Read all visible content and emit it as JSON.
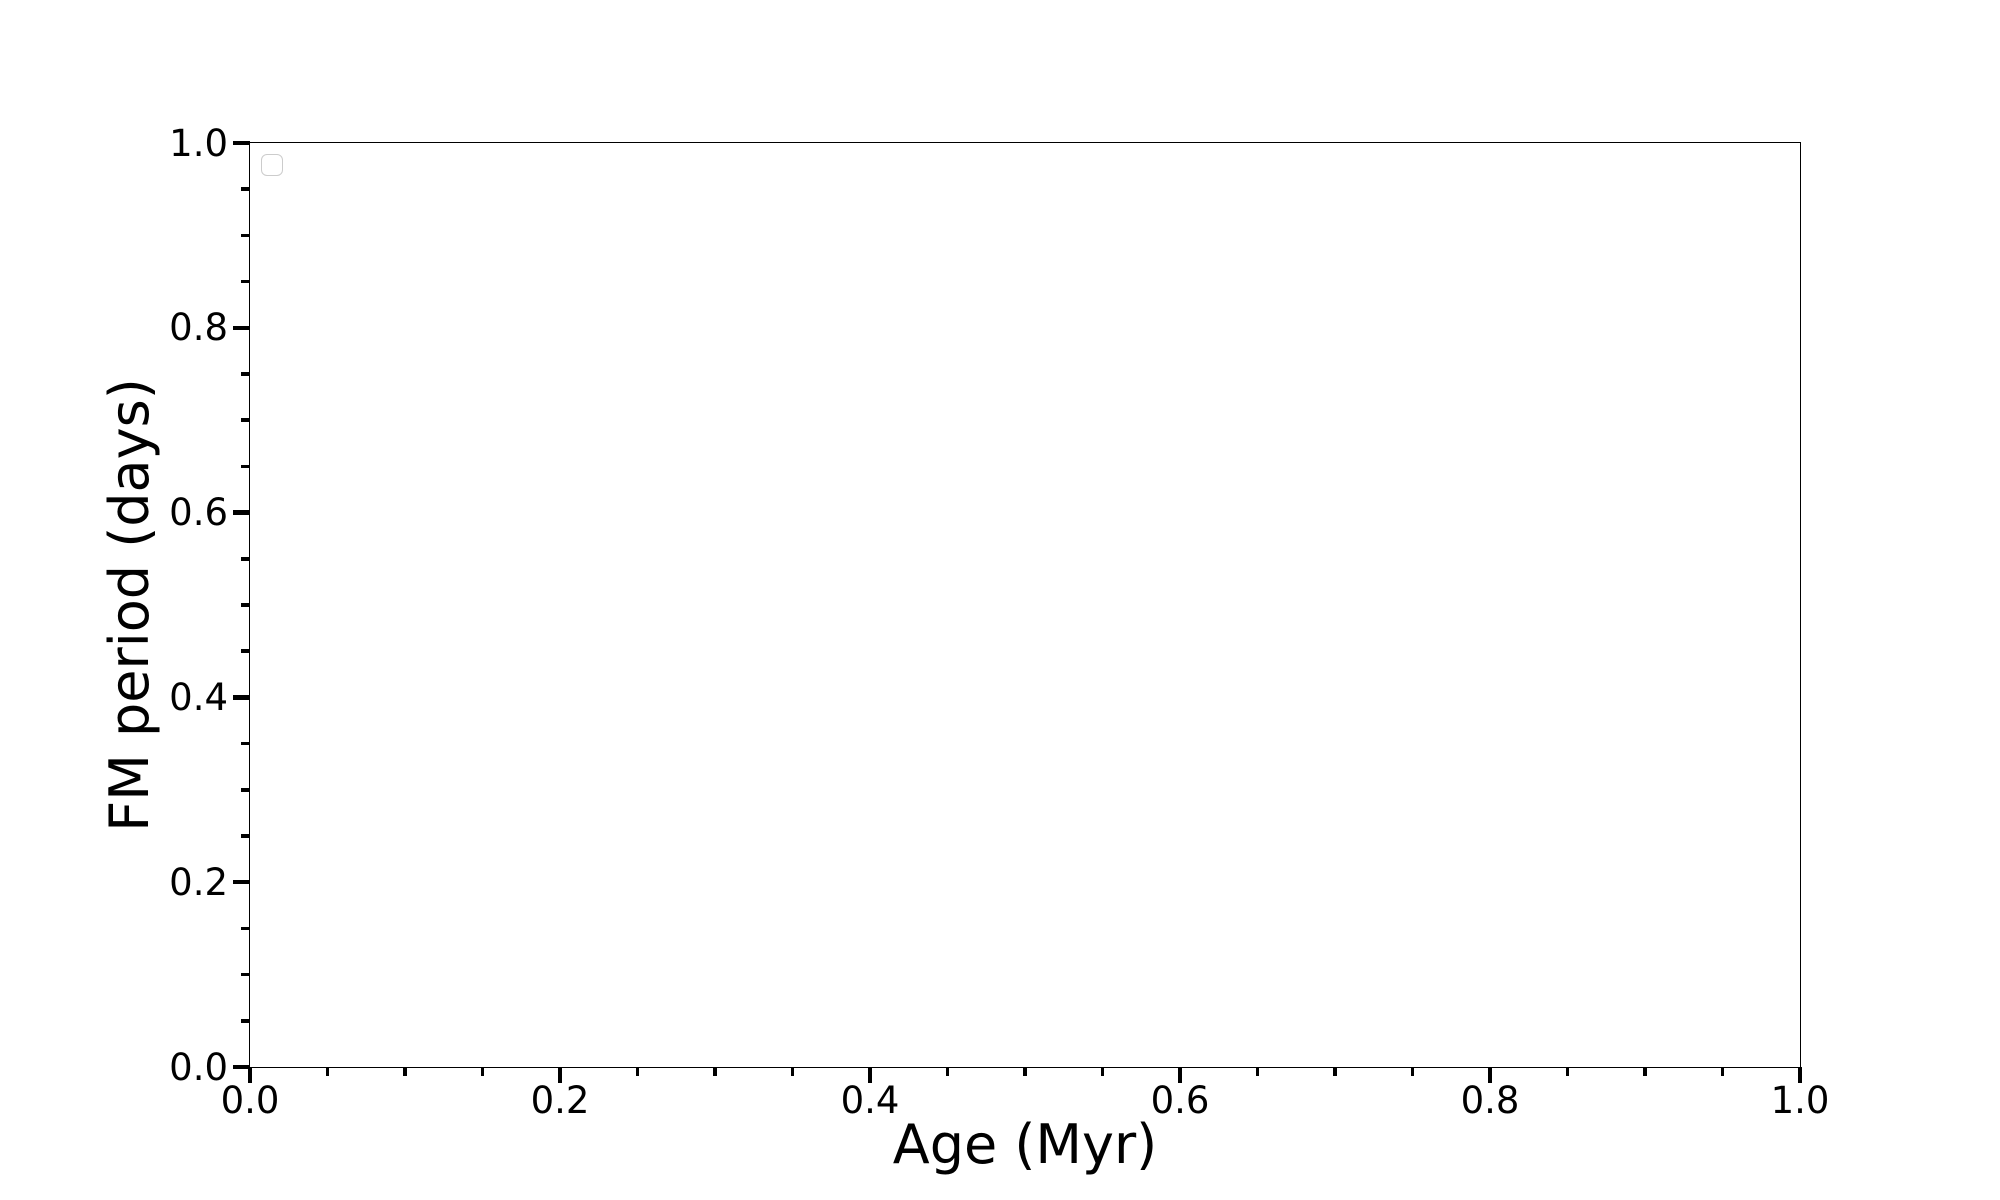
{
  "chart_data": {
    "type": "scatter",
    "title": "",
    "xlabel": "Age (Myr)",
    "ylabel": "FM period (days)",
    "xlim": [
      0.0,
      1.0
    ],
    "ylim": [
      0.0,
      1.0
    ],
    "x_major_ticks": [
      0.0,
      0.2,
      0.4,
      0.6,
      0.8,
      1.0
    ],
    "x_tick_labels": [
      "0.0",
      "0.2",
      "0.4",
      "0.6",
      "0.8",
      "1.0"
    ],
    "y_major_ticks": [
      0.0,
      0.2,
      0.4,
      0.6,
      0.8,
      1.0
    ],
    "y_tick_labels": [
      "0.0",
      "0.2",
      "0.4",
      "0.6",
      "0.8",
      "1.0"
    ],
    "minor_tick_interval": 0.05,
    "grid": false,
    "series": [],
    "legend": {
      "visible": true,
      "position": "upper left",
      "entries": []
    },
    "colors": {
      "background": "#ffffff",
      "axes_line": "#000000",
      "tick": "#000000",
      "text": "#000000",
      "legend_border": "#cccccc"
    }
  }
}
